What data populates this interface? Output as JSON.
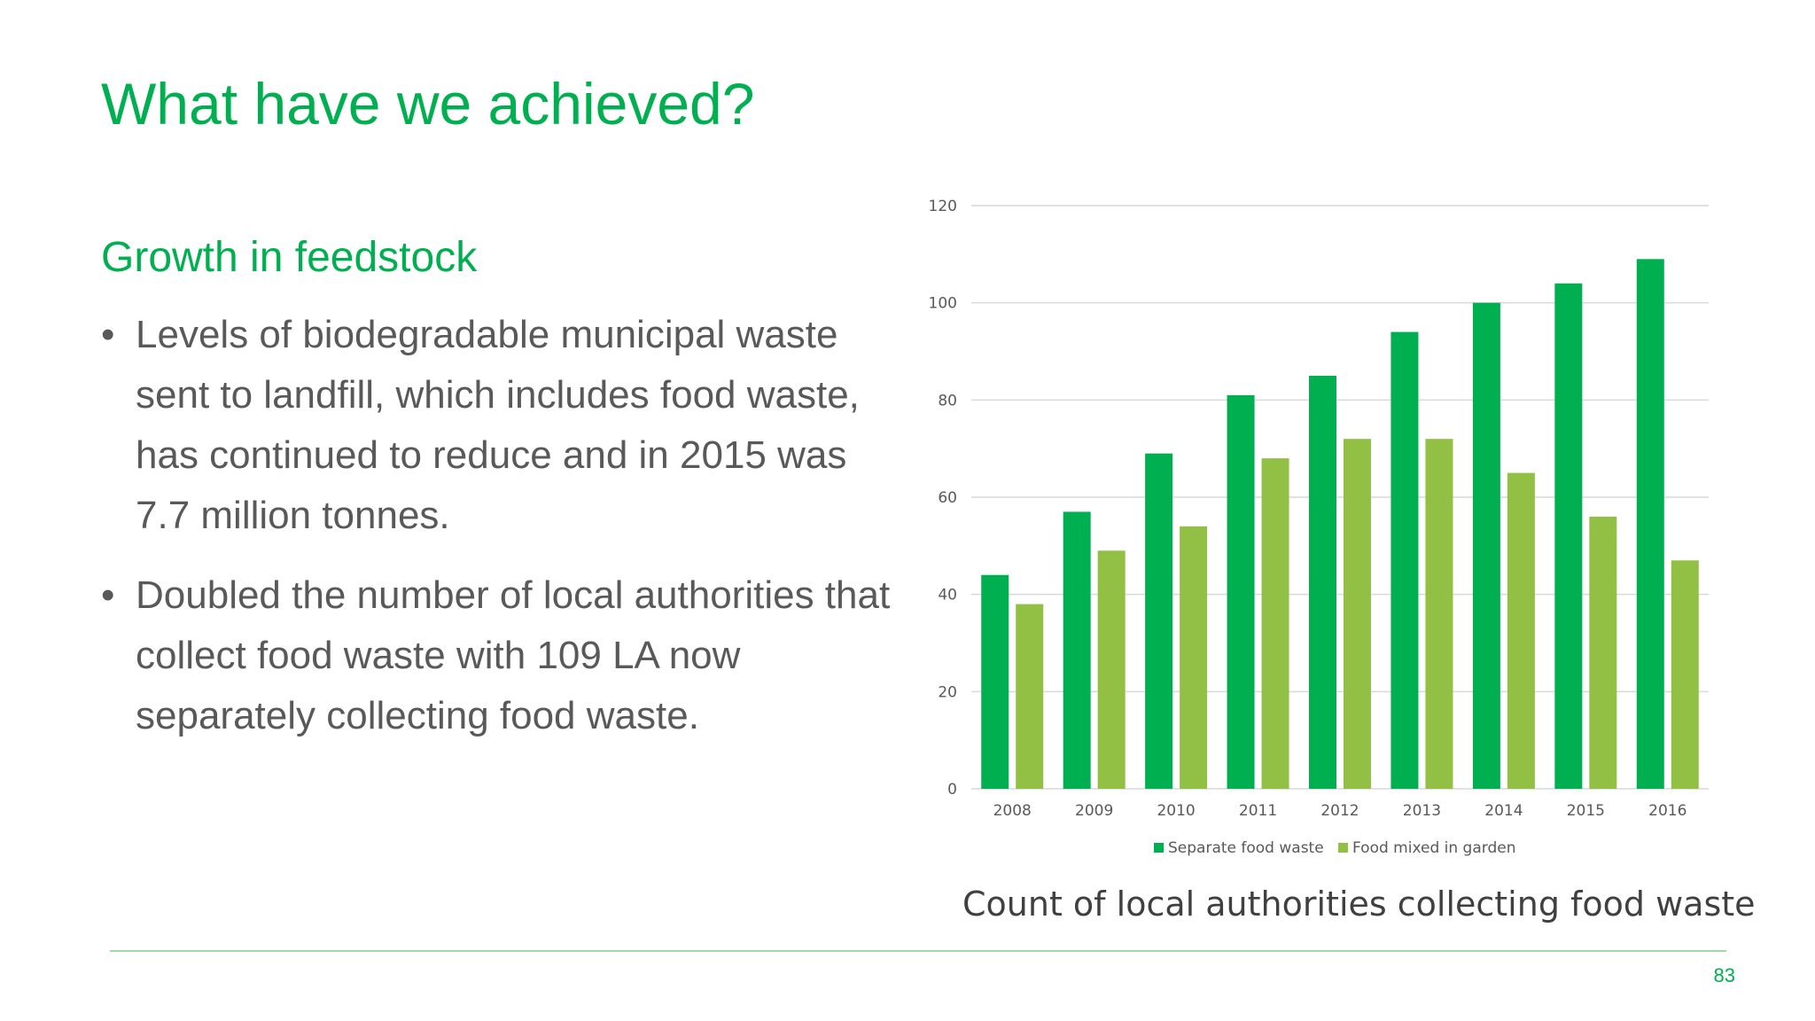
{
  "slide": {
    "title": "What have we achieved?",
    "subheading": "Growth in feedstock",
    "bullets": [
      "Levels of biodegradable municipal waste sent to landfill, which includes food waste, has continued to reduce and in 2015 was 7.7 million tonnes.",
      "Doubled the number of local authorities that collect food waste with 109 LA now separately collecting food waste."
    ],
    "bullet_symbol": "•",
    "caption": "Count of local authorities collecting food waste",
    "page_number": "83"
  },
  "colors": {
    "accent": "#00b050",
    "body_text": "#595959",
    "series_separate": "#00b050",
    "series_mixed": "#92c044",
    "gridline": "#d9d9d9",
    "axis_text": "#595959"
  },
  "chart_data": {
    "type": "bar",
    "categories": [
      "2008",
      "2009",
      "2010",
      "2011",
      "2012",
      "2013",
      "2014",
      "2015",
      "2016"
    ],
    "series": [
      {
        "name": "Separate food waste",
        "values": [
          44,
          57,
          69,
          81,
          85,
          94,
          100,
          104,
          109
        ]
      },
      {
        "name": "Food mixed in garden",
        "values": [
          38,
          49,
          54,
          68,
          72,
          72,
          65,
          56,
          47
        ]
      }
    ],
    "ylim": [
      0,
      120
    ],
    "yticks": [
      0,
      20,
      40,
      60,
      80,
      100,
      120
    ],
    "grid": true,
    "legend": "bottom"
  }
}
